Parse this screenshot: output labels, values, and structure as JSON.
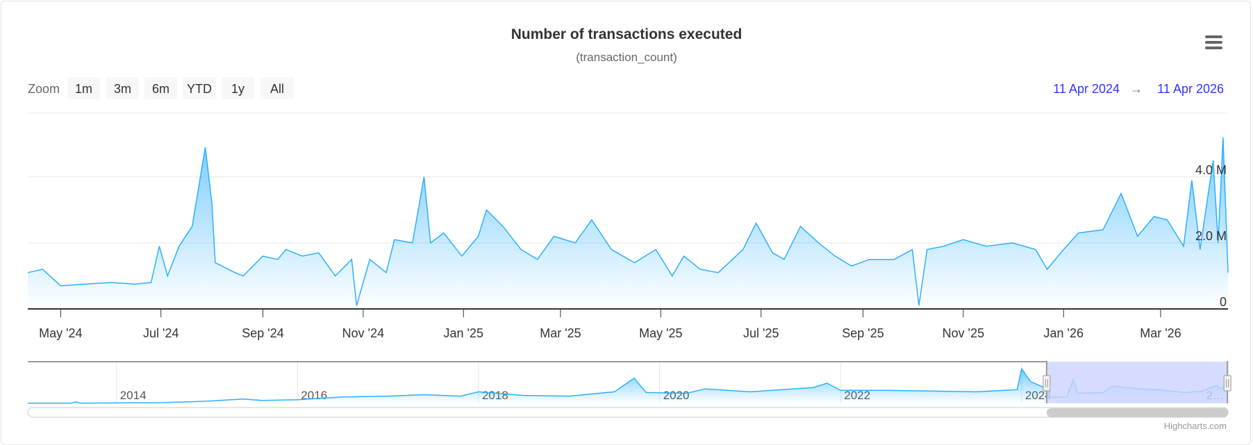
{
  "title": "Number of transactions executed",
  "subtitle": "(transaction_count)",
  "menu_icon": "hamburger-menu-icon",
  "range_selector": {
    "label": "Zoom",
    "buttons": [
      "1m",
      "3m",
      "6m",
      "YTD",
      "1y",
      "All"
    ],
    "from": "11 Apr 2024",
    "arrow": "→",
    "to": "11 Apr 2026"
  },
  "credits": "Highcharts.com",
  "colors": {
    "series": "#2caffe",
    "range_text": "#3333ff",
    "navigator_mask": "#ccd3ff"
  },
  "chart_data": {
    "type": "area",
    "title": "Number of transactions executed",
    "subtitle": "(transaction_count)",
    "xrange": [
      "2024-04-11",
      "2026-04-11"
    ],
    "ylim": [
      0,
      5300000
    ],
    "grid": true,
    "x_ticks": [
      {
        "date": "2024-05-01",
        "label": "May '24"
      },
      {
        "date": "2024-07-01",
        "label": "Jul '24"
      },
      {
        "date": "2024-09-01",
        "label": "Sep '24"
      },
      {
        "date": "2024-11-01",
        "label": "Nov '24"
      },
      {
        "date": "2025-01-01",
        "label": "Jan '25"
      },
      {
        "date": "2025-03-01",
        "label": "Mar '25"
      },
      {
        "date": "2025-05-01",
        "label": "May '25"
      },
      {
        "date": "2025-07-01",
        "label": "Jul '25"
      },
      {
        "date": "2025-09-01",
        "label": "Sep '25"
      },
      {
        "date": "2025-11-01",
        "label": "Nov '25"
      },
      {
        "date": "2026-01-01",
        "label": "Jan '26"
      },
      {
        "date": "2026-03-01",
        "label": "Mar '26"
      }
    ],
    "y_ticks": [
      {
        "value": 0,
        "label": "0"
      },
      {
        "value": 2000000,
        "label": "2.0 M"
      },
      {
        "value": 4000000,
        "label": "4.0 M"
      }
    ],
    "series": [
      {
        "points": [
          [
            "2024-04-11",
            1100000
          ],
          [
            "2024-04-20",
            1200000
          ],
          [
            "2024-05-01",
            700000
          ],
          [
            "2024-05-15",
            750000
          ],
          [
            "2024-06-01",
            800000
          ],
          [
            "2024-06-15",
            750000
          ],
          [
            "2024-06-25",
            800000
          ],
          [
            "2024-06-30",
            1900000
          ],
          [
            "2024-07-05",
            1000000
          ],
          [
            "2024-07-12",
            1900000
          ],
          [
            "2024-07-20",
            2500000
          ],
          [
            "2024-07-25",
            4000000
          ],
          [
            "2024-07-28",
            4900000
          ],
          [
            "2024-08-01",
            3200000
          ],
          [
            "2024-08-03",
            1400000
          ],
          [
            "2024-08-15",
            1100000
          ],
          [
            "2024-08-20",
            1000000
          ],
          [
            "2024-09-01",
            1600000
          ],
          [
            "2024-09-10",
            1500000
          ],
          [
            "2024-09-15",
            1800000
          ],
          [
            "2024-09-25",
            1600000
          ],
          [
            "2024-10-05",
            1700000
          ],
          [
            "2024-10-15",
            1000000
          ],
          [
            "2024-10-25",
            1500000
          ],
          [
            "2024-10-28",
            100000
          ],
          [
            "2024-11-05",
            1500000
          ],
          [
            "2024-11-15",
            1100000
          ],
          [
            "2024-11-20",
            2100000
          ],
          [
            "2024-12-01",
            2000000
          ],
          [
            "2024-12-08",
            4000000
          ],
          [
            "2024-12-12",
            2000000
          ],
          [
            "2024-12-20",
            2300000
          ],
          [
            "2024-12-31",
            1600000
          ],
          [
            "2025-01-10",
            2200000
          ],
          [
            "2025-01-15",
            3000000
          ],
          [
            "2025-01-25",
            2500000
          ],
          [
            "2025-02-05",
            1800000
          ],
          [
            "2025-02-15",
            1500000
          ],
          [
            "2025-02-25",
            2200000
          ],
          [
            "2025-03-10",
            2000000
          ],
          [
            "2025-03-20",
            2700000
          ],
          [
            "2025-04-01",
            1800000
          ],
          [
            "2025-04-15",
            1400000
          ],
          [
            "2025-04-28",
            1800000
          ],
          [
            "2025-05-08",
            1000000
          ],
          [
            "2025-05-15",
            1600000
          ],
          [
            "2025-05-25",
            1200000
          ],
          [
            "2025-06-05",
            1100000
          ],
          [
            "2025-06-20",
            1800000
          ],
          [
            "2025-06-28",
            2600000
          ],
          [
            "2025-07-08",
            1700000
          ],
          [
            "2025-07-15",
            1500000
          ],
          [
            "2025-07-25",
            2500000
          ],
          [
            "2025-08-05",
            2000000
          ],
          [
            "2025-08-15",
            1600000
          ],
          [
            "2025-08-25",
            1300000
          ],
          [
            "2025-09-05",
            1500000
          ],
          [
            "2025-09-20",
            1500000
          ],
          [
            "2025-10-01",
            1800000
          ],
          [
            "2025-10-05",
            100000
          ],
          [
            "2025-10-10",
            1800000
          ],
          [
            "2025-10-20",
            1900000
          ],
          [
            "2025-11-01",
            2100000
          ],
          [
            "2025-11-15",
            1900000
          ],
          [
            "2025-12-01",
            2000000
          ],
          [
            "2025-12-15",
            1800000
          ],
          [
            "2025-12-22",
            1200000
          ],
          [
            "2026-01-01",
            1800000
          ],
          [
            "2026-01-10",
            2300000
          ],
          [
            "2026-01-25",
            2400000
          ],
          [
            "2026-02-05",
            3500000
          ],
          [
            "2026-02-15",
            2200000
          ],
          [
            "2026-02-25",
            2800000
          ],
          [
            "2026-03-05",
            2700000
          ],
          [
            "2026-03-15",
            1900000
          ],
          [
            "2026-03-20",
            3900000
          ],
          [
            "2026-03-25",
            1800000
          ],
          [
            "2026-03-30",
            3500000
          ],
          [
            "2026-04-02",
            4500000
          ],
          [
            "2026-04-05",
            2000000
          ],
          [
            "2026-04-08",
            5200000
          ],
          [
            "2026-04-10",
            2500000
          ],
          [
            "2026-04-11",
            1100000
          ]
        ]
      }
    ],
    "navigator": {
      "xrange": [
        2013.02,
        2026.28
      ],
      "ticks": [
        {
          "year": 2014,
          "label": "2014"
        },
        {
          "year": 2016,
          "label": "2016"
        },
        {
          "year": 2018,
          "label": "2018"
        },
        {
          "year": 2020,
          "label": "2020"
        },
        {
          "year": 2022,
          "label": "2022"
        },
        {
          "year": 2024,
          "label": "2024"
        },
        {
          "year": 2026,
          "label": "2…"
        }
      ],
      "selected": [
        "2024-04-11",
        "2026-04-11"
      ],
      "points": [
        [
          2013.02,
          0.02
        ],
        [
          2013.5,
          0.03
        ],
        [
          2013.55,
          0.2
        ],
        [
          2013.6,
          0.03
        ],
        [
          2014.5,
          0.1
        ],
        [
          2015.0,
          0.3
        ],
        [
          2015.4,
          0.6
        ],
        [
          2015.6,
          0.4
        ],
        [
          2016.0,
          0.5
        ],
        [
          2016.5,
          0.9
        ],
        [
          2017.0,
          1.0
        ],
        [
          2017.4,
          1.2
        ],
        [
          2017.8,
          1.0
        ],
        [
          2018.0,
          1.6
        ],
        [
          2018.5,
          1.1
        ],
        [
          2019.0,
          1.0
        ],
        [
          2019.5,
          1.6
        ],
        [
          2019.72,
          3.5
        ],
        [
          2019.85,
          1.5
        ],
        [
          2020.3,
          1.4
        ],
        [
          2020.5,
          2.0
        ],
        [
          2021.0,
          1.6
        ],
        [
          2021.7,
          2.2
        ],
        [
          2021.85,
          2.8
        ],
        [
          2022.0,
          1.8
        ],
        [
          2022.5,
          1.8
        ],
        [
          2023.0,
          1.7
        ],
        [
          2023.5,
          1.6
        ],
        [
          2023.95,
          1.9
        ],
        [
          2024.0,
          4.8
        ],
        [
          2024.1,
          3.0
        ],
        [
          2024.25,
          2.2
        ],
        [
          2024.3,
          0.8
        ],
        [
          2024.5,
          0.9
        ],
        [
          2024.57,
          3.3
        ],
        [
          2024.62,
          1.4
        ],
        [
          2024.9,
          1.5
        ],
        [
          2025.0,
          2.4
        ],
        [
          2025.3,
          2.0
        ],
        [
          2025.5,
          1.9
        ],
        [
          2025.8,
          1.5
        ],
        [
          2026.0,
          1.7
        ],
        [
          2026.15,
          2.5
        ],
        [
          2026.2,
          2.0
        ],
        [
          2026.28,
          2.7
        ]
      ]
    }
  }
}
